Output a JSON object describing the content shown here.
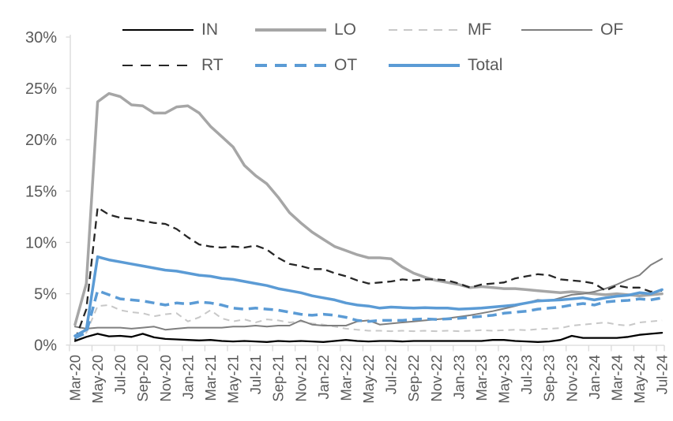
{
  "chart_data": {
    "type": "line",
    "title": "",
    "xlabel": "",
    "ylabel": "",
    "y_axis": {
      "ticks": [
        0,
        5,
        10,
        15,
        20,
        25,
        30
      ],
      "suffix": "%",
      "min": 0,
      "max": 30,
      "grid": false
    },
    "x_tick_labels": [
      "Mar-20",
      "May-20",
      "Jul-20",
      "Sep-20",
      "Nov-20",
      "Jan-21",
      "Mar-21",
      "May-21",
      "Jul-21",
      "Sep-21",
      "Nov-21",
      "Jan-22",
      "Mar-22",
      "May-22",
      "Jul-22",
      "Sep-22",
      "Nov-22",
      "Jan-23",
      "Mar-23",
      "May-23",
      "Jul-23",
      "Sep-23",
      "Nov-23",
      "Jan-24",
      "Mar-24",
      "May-24",
      "Jul-24"
    ],
    "points_per_tick_label": 2,
    "n_points": 53,
    "legend_position": "top",
    "legend_rows": [
      [
        "IN",
        "LO",
        "MF",
        "OF"
      ],
      [
        "RT",
        "OT",
        "Total"
      ]
    ],
    "legend_columns_x": [
      155,
      323,
      492,
      660
    ],
    "series": [
      {
        "name": "IN",
        "color": "#000000",
        "dash": "solid",
        "width": 2.3,
        "values": [
          0.4,
          0.8,
          1.1,
          0.85,
          0.9,
          0.8,
          1.1,
          0.75,
          0.6,
          0.55,
          0.5,
          0.45,
          0.5,
          0.4,
          0.35,
          0.4,
          0.35,
          0.3,
          0.4,
          0.35,
          0.4,
          0.35,
          0.3,
          0.4,
          0.5,
          0.4,
          0.35,
          0.4,
          0.4,
          0.35,
          0.4,
          0.4,
          0.4,
          0.4,
          0.4,
          0.4,
          0.4,
          0.5,
          0.5,
          0.4,
          0.35,
          0.3,
          0.35,
          0.5,
          0.9,
          0.7,
          0.7,
          0.7,
          0.7,
          0.8,
          1.0,
          1.1,
          1.2
        ]
      },
      {
        "name": "LO",
        "color": "#a6a6a6",
        "dash": "solid",
        "width": 3.5,
        "values": [
          2.0,
          6.0,
          23.7,
          24.5,
          24.2,
          23.4,
          23.3,
          22.6,
          22.6,
          23.2,
          23.3,
          22.6,
          21.3,
          20.3,
          19.3,
          17.5,
          16.5,
          15.7,
          14.4,
          12.9,
          11.9,
          11.0,
          10.3,
          9.6,
          9.2,
          8.8,
          8.5,
          8.5,
          8.4,
          7.6,
          7.0,
          6.6,
          6.3,
          6.1,
          5.9,
          5.6,
          5.7,
          5.6,
          5.5,
          5.5,
          5.4,
          5.3,
          5.2,
          5.1,
          5.2,
          5.1,
          5.0,
          4.9,
          5.0,
          4.9,
          4.8,
          4.9,
          5.0
        ]
      },
      {
        "name": "MF",
        "color": "#c8c8c8",
        "dash": "dash",
        "width": 2,
        "values": [
          0.8,
          1.2,
          3.8,
          3.9,
          3.4,
          3.2,
          3.1,
          2.8,
          3.0,
          3.1,
          2.3,
          2.7,
          3.4,
          2.6,
          2.3,
          2.5,
          2.2,
          2.5,
          2.4,
          2.2,
          2.3,
          2.1,
          2.0,
          1.8,
          1.6,
          1.5,
          1.4,
          1.4,
          1.35,
          1.4,
          1.35,
          1.4,
          1.35,
          1.4,
          1.35,
          1.4,
          1.45,
          1.4,
          1.45,
          1.5,
          1.45,
          1.55,
          1.6,
          1.65,
          1.9,
          2.0,
          2.1,
          2.2,
          2.0,
          1.9,
          2.2,
          2.3,
          2.4
        ]
      },
      {
        "name": "OF",
        "color": "#7f7f7f",
        "dash": "solid",
        "width": 2,
        "values": [
          1.8,
          1.6,
          1.7,
          1.7,
          1.7,
          1.6,
          1.7,
          1.8,
          1.5,
          1.6,
          1.7,
          1.7,
          1.7,
          1.7,
          1.8,
          1.8,
          1.9,
          1.8,
          1.9,
          1.9,
          2.4,
          2.0,
          1.9,
          1.9,
          1.9,
          2.3,
          2.4,
          2.0,
          2.1,
          2.2,
          2.3,
          2.4,
          2.5,
          2.6,
          2.75,
          2.9,
          3.1,
          3.3,
          3.55,
          3.8,
          4.1,
          4.4,
          4.3,
          4.6,
          4.9,
          5.0,
          5.2,
          5.5,
          5.9,
          6.4,
          6.8,
          7.8,
          8.4
        ]
      },
      {
        "name": "RT",
        "color": "#262626",
        "dash": "dash",
        "width": 2.3,
        "values": [
          0.5,
          3.5,
          13.4,
          12.7,
          12.4,
          12.3,
          12.1,
          11.9,
          11.8,
          11.3,
          10.5,
          9.8,
          9.6,
          9.5,
          9.6,
          9.5,
          9.7,
          9.3,
          8.5,
          7.9,
          7.7,
          7.4,
          7.4,
          7.0,
          6.7,
          6.3,
          6.0,
          6.1,
          6.2,
          6.4,
          6.3,
          6.4,
          6.4,
          6.3,
          6.0,
          5.6,
          5.9,
          6.0,
          6.1,
          6.5,
          6.7,
          6.9,
          6.8,
          6.4,
          6.3,
          6.2,
          6.0,
          5.3,
          5.8,
          5.6,
          5.6,
          5.2,
          5.3
        ]
      },
      {
        "name": "OT",
        "color": "#5b9bd5",
        "dash": "dash",
        "width": 3.5,
        "values": [
          0.7,
          1.2,
          5.3,
          4.9,
          4.5,
          4.4,
          4.3,
          4.1,
          3.9,
          4.1,
          4.0,
          4.2,
          4.1,
          3.9,
          3.6,
          3.5,
          3.6,
          3.5,
          3.4,
          3.2,
          3.0,
          2.9,
          3.0,
          2.9,
          2.7,
          2.4,
          2.3,
          2.4,
          2.4,
          2.4,
          2.5,
          2.55,
          2.5,
          2.55,
          2.6,
          2.7,
          2.8,
          2.9,
          3.1,
          3.2,
          3.3,
          3.5,
          3.6,
          3.7,
          3.9,
          4.05,
          3.9,
          4.2,
          4.3,
          4.35,
          4.5,
          4.4,
          4.6
        ]
      },
      {
        "name": "Total",
        "color": "#5b9bd5",
        "dash": "solid",
        "width": 3.5,
        "values": [
          0.9,
          1.5,
          8.6,
          8.3,
          8.1,
          7.9,
          7.7,
          7.5,
          7.3,
          7.2,
          7.0,
          6.8,
          6.7,
          6.5,
          6.4,
          6.2,
          6.0,
          5.8,
          5.5,
          5.3,
          5.1,
          4.8,
          4.6,
          4.4,
          4.1,
          3.9,
          3.8,
          3.6,
          3.7,
          3.65,
          3.6,
          3.65,
          3.6,
          3.6,
          3.5,
          3.55,
          3.6,
          3.7,
          3.8,
          3.9,
          4.1,
          4.3,
          4.35,
          4.4,
          4.5,
          4.6,
          4.4,
          4.6,
          4.75,
          4.85,
          5.1,
          5.0,
          5.4
        ]
      }
    ],
    "colors": {
      "blue": "#5b9bd5",
      "light_gray": "#a6a6a6",
      "lighter_gray": "#c8c8c8",
      "dark_gray": "#7f7f7f",
      "near_black": "#262626",
      "axis_line": "#d9d9d9",
      "axis_text": "#595959"
    }
  }
}
